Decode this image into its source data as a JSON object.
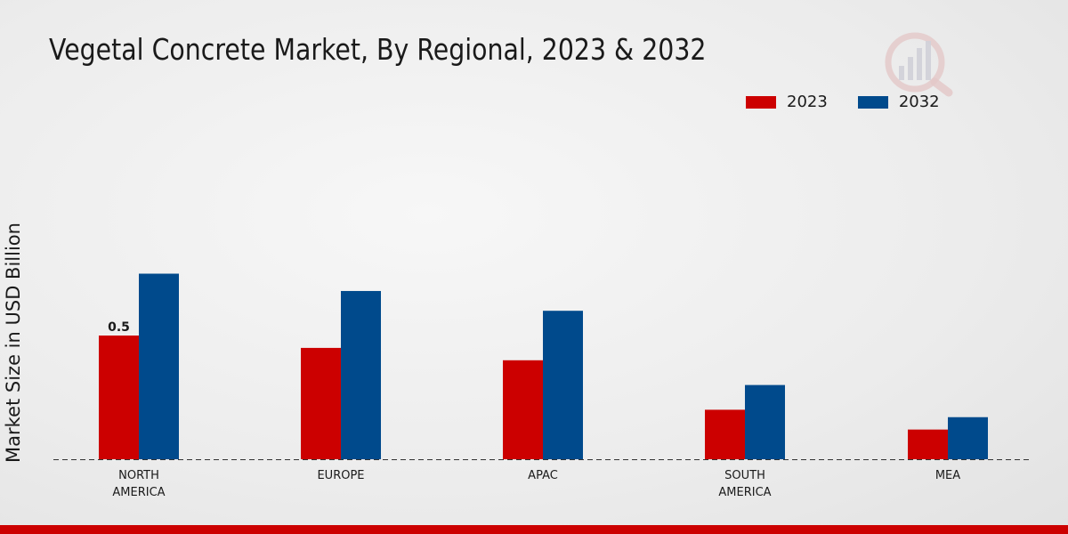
{
  "chart_data": {
    "type": "bar",
    "title": "Vegetal Concrete Market, By Regional, 2023 & 2032",
    "xlabel": "",
    "ylabel": "Market Size in USD Billion",
    "ylim": [
      0,
      1.2
    ],
    "categories": [
      "NORTH\nAMERICA",
      "EUROPE",
      "APAC",
      "SOUTH\nAMERICA",
      "MEA"
    ],
    "series": [
      {
        "name": "2023",
        "color": "#cc0000",
        "values": [
          0.5,
          0.45,
          0.4,
          0.2,
          0.12
        ]
      },
      {
        "name": "2032",
        "color": "#004a8c",
        "values": [
          0.75,
          0.68,
          0.6,
          0.3,
          0.17
        ]
      }
    ],
    "data_labels": [
      {
        "series": 0,
        "index": 0,
        "text": "0.5"
      }
    ],
    "legend": "top-right",
    "grid": false
  }
}
